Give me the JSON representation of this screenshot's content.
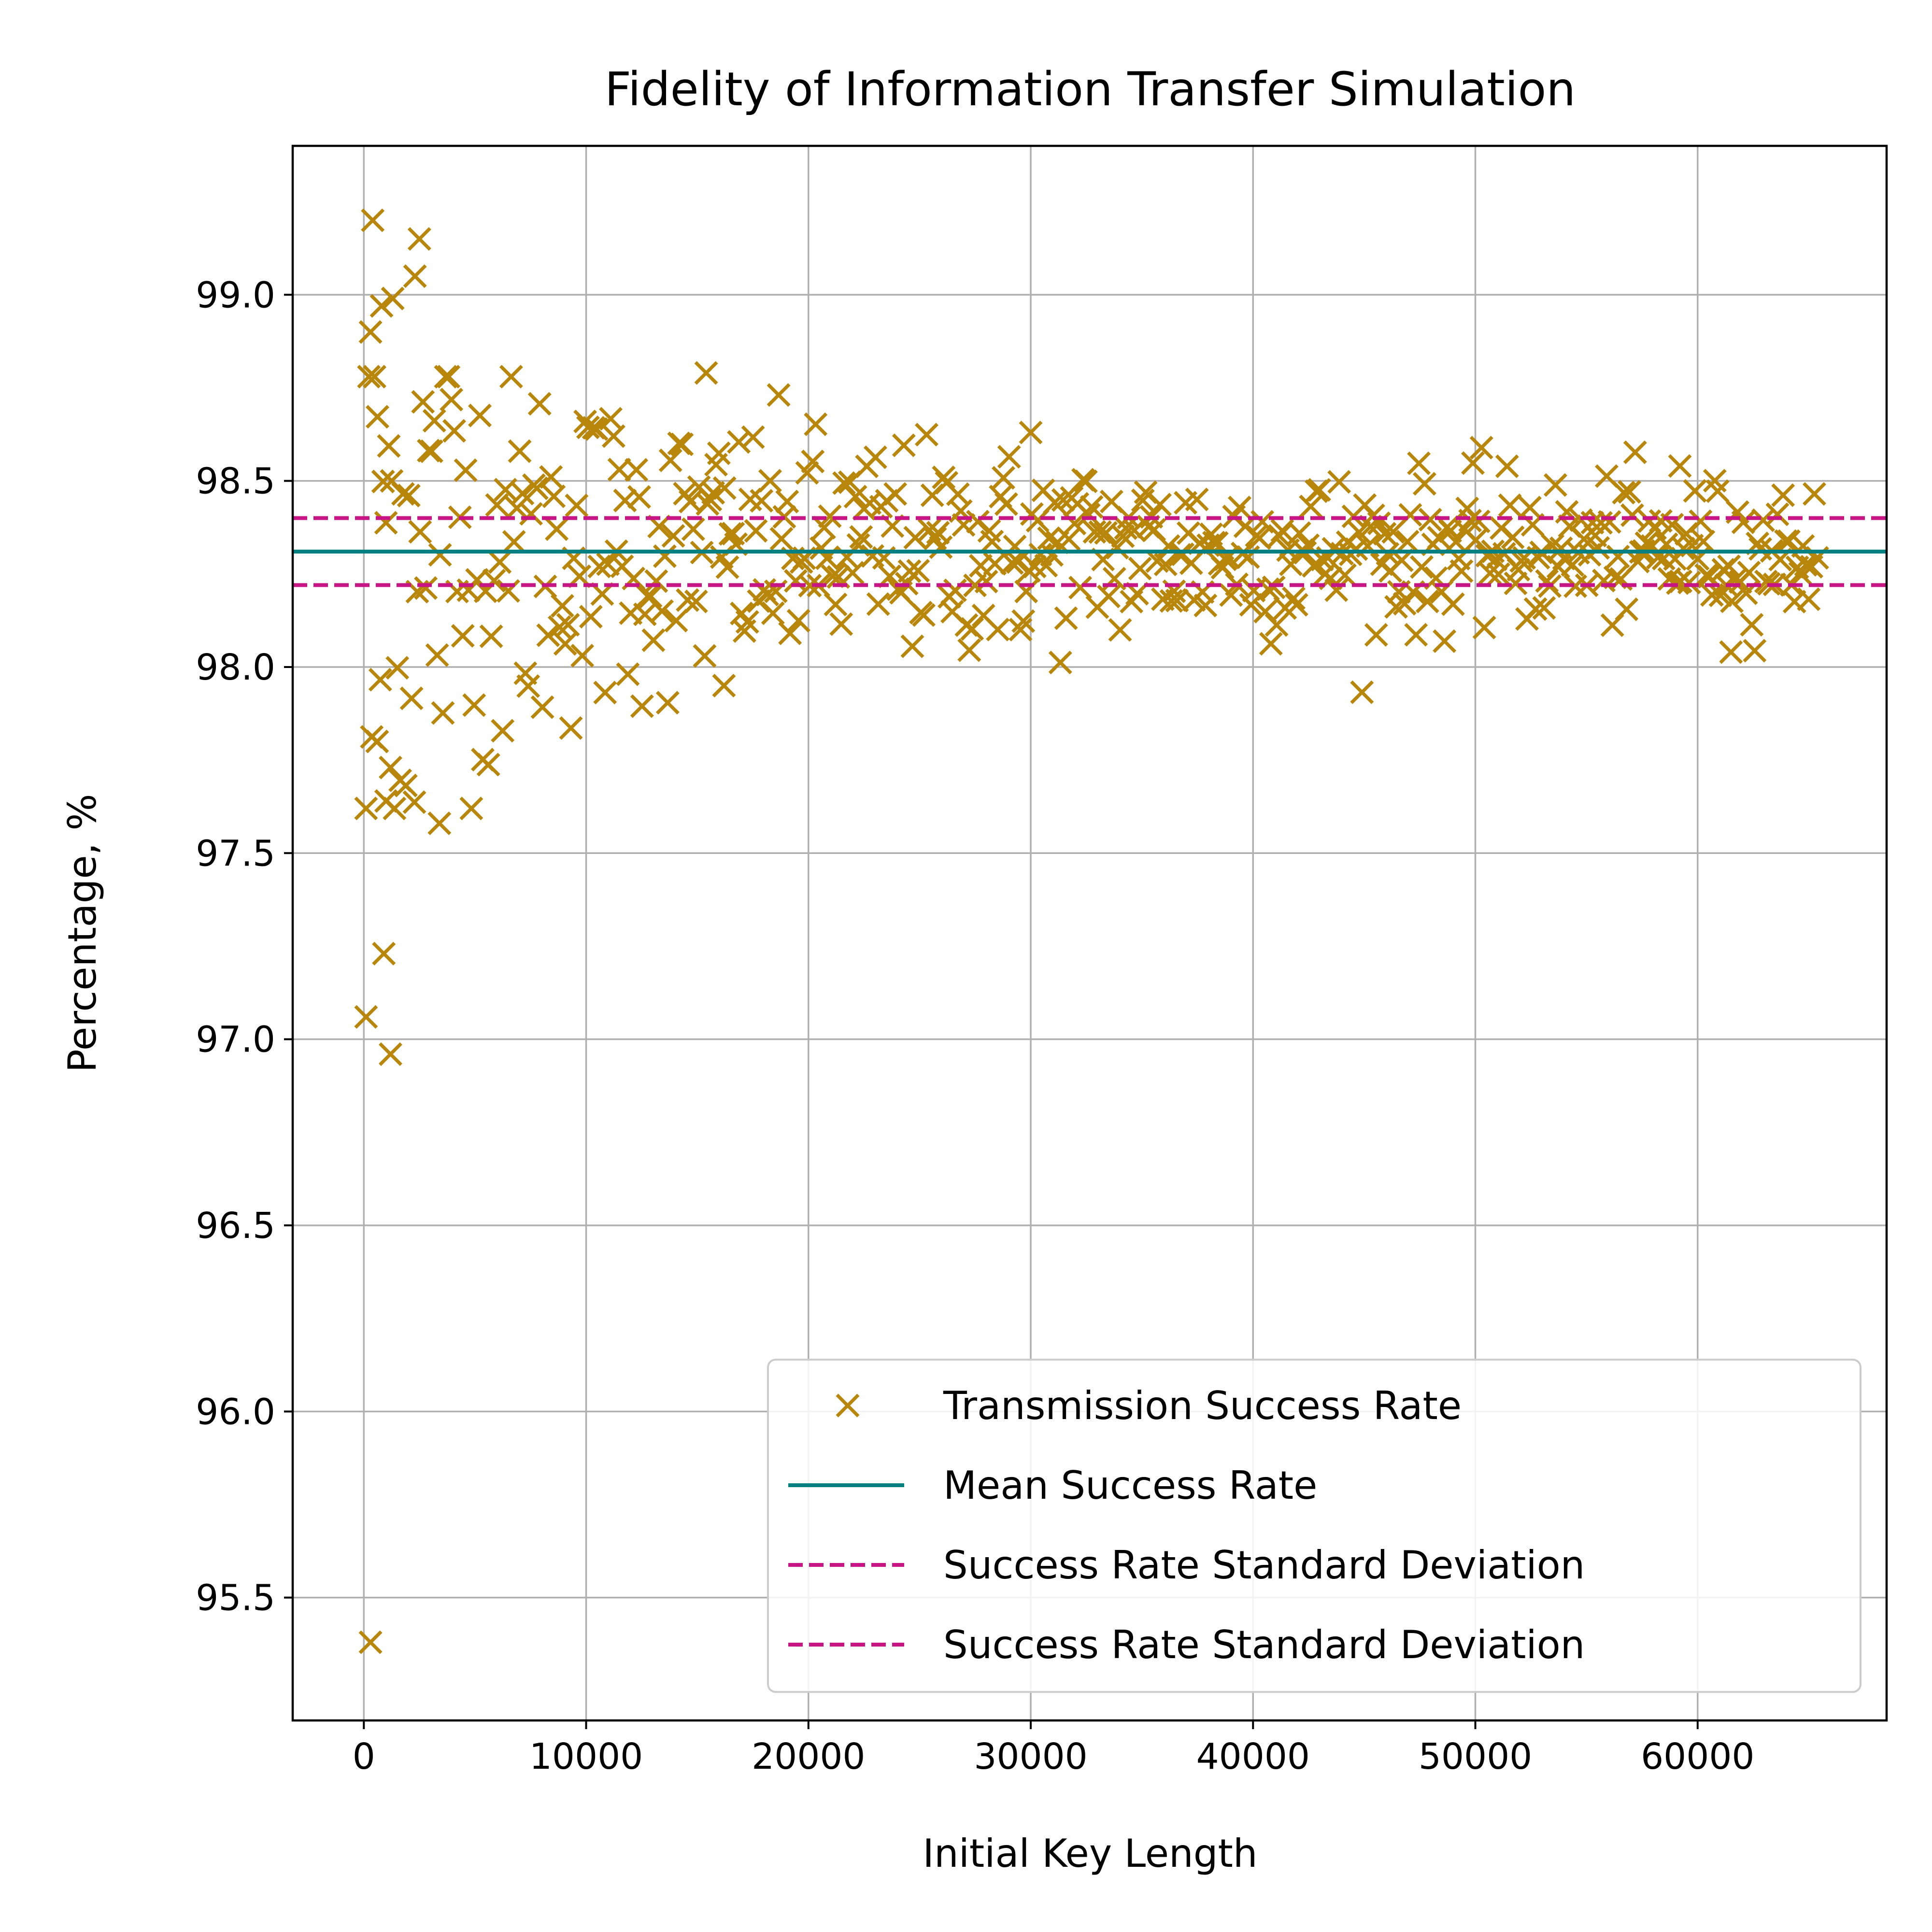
{
  "chart_data": {
    "type": "scatter",
    "title": "Fidelity of Information Transfer Simulation",
    "xlabel": "Initial Key Length",
    "ylabel": "Percentage, %",
    "xlim": [
      -3200,
      68500
    ],
    "ylim": [
      95.17,
      99.4
    ],
    "x_ticks": [
      0,
      10000,
      20000,
      30000,
      40000,
      50000,
      60000
    ],
    "x_tick_labels": [
      "0",
      "10000",
      "20000",
      "30000",
      "40000",
      "50000",
      "60000"
    ],
    "y_ticks": [
      95.5,
      96.0,
      96.5,
      97.0,
      97.5,
      98.0,
      98.5,
      99.0
    ],
    "y_tick_labels": [
      "95.5",
      "96.0",
      "96.5",
      "97.0",
      "97.5",
      "98.0",
      "98.5",
      "99.0"
    ],
    "grid": true,
    "legend_position": "lower-right",
    "colors": {
      "scatter": "#b8860b",
      "mean": "#008080",
      "std": "#c71585",
      "grid": "#b0b0b0"
    },
    "mean": 98.31,
    "std_upper": 98.4,
    "std_lower": 98.22,
    "points_model": {
      "x_start": 100,
      "x_end": 65500,
      "x_step": 128,
      "spread_coefficient": 23,
      "spread_floor": 0.028
    },
    "outliers": [
      {
        "x": 400,
        "y": 99.2
      },
      {
        "x": 2500,
        "y": 99.15
      },
      {
        "x": 2300,
        "y": 99.05
      },
      {
        "x": 1300,
        "y": 98.99
      },
      {
        "x": 800,
        "y": 98.97
      },
      {
        "x": 300,
        "y": 98.9
      },
      {
        "x": 15400,
        "y": 98.79
      },
      {
        "x": 30000,
        "y": 98.63
      },
      {
        "x": 59200,
        "y": 98.54
      },
      {
        "x": 3400,
        "y": 97.58
      },
      {
        "x": 900,
        "y": 97.23
      },
      {
        "x": 1200,
        "y": 96.96
      },
      {
        "x": 100,
        "y": 97.06
      },
      {
        "x": 300,
        "y": 95.38
      },
      {
        "x": 61500,
        "y": 98.04
      },
      {
        "x": 16200,
        "y": 97.95
      },
      {
        "x": 1000,
        "y": 97.64
      },
      {
        "x": 1200,
        "y": 97.73
      },
      {
        "x": 600,
        "y": 97.8
      }
    ],
    "series": [
      {
        "name": "Transmission Success Rate",
        "kind": "scatter",
        "marker": "x"
      },
      {
        "name": "Mean Success Rate",
        "kind": "hline",
        "value": 98.31
      },
      {
        "name": "Success Rate Standard Deviation",
        "kind": "hline",
        "value": 98.4,
        "style": "dashed"
      },
      {
        "name": "Success Rate Standard Deviation",
        "kind": "hline",
        "value": 98.22,
        "style": "dashed"
      }
    ]
  }
}
